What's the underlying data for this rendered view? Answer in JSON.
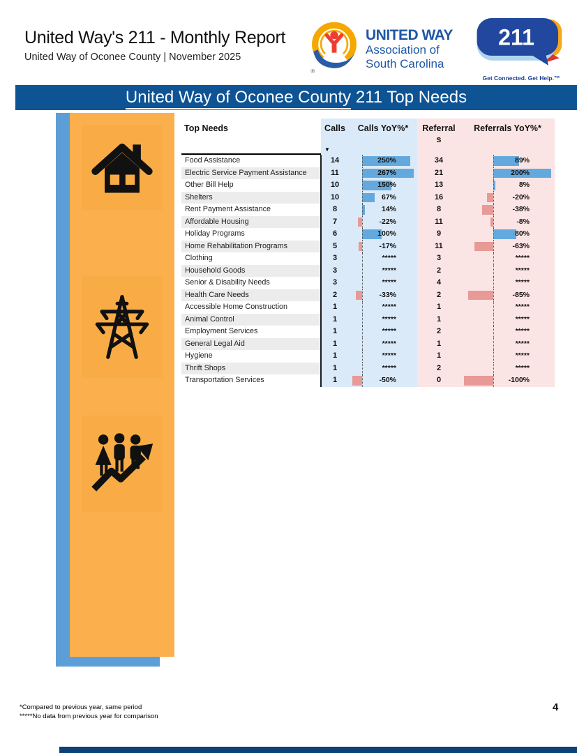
{
  "header": {
    "title": "United Way's 211 - Monthly Report",
    "subtitle": "United Way of Oconee County | November 2025"
  },
  "logos": {
    "united_way": {
      "brand": "UNITED WAY",
      "org_line1": "Association of",
      "org_line2": "South Carolina",
      "registered": "®"
    },
    "two_one_one": {
      "number": "211",
      "tagline": "Get Connected. Get Help.™"
    }
  },
  "banner": {
    "underlined": "United Way of Oconee County",
    "rest": " 211 Top Needs"
  },
  "sidebar": {
    "icons": [
      "house-icon",
      "transmission-tower-icon",
      "people-growth-icon"
    ]
  },
  "table": {
    "columns": [
      "Top Needs",
      "Calls",
      "Calls YoY%*",
      "Referrals",
      "Referrals YoY%*"
    ],
    "sort_indicator": "▼",
    "sorted_column": "Calls",
    "no_data_marker": "*****",
    "rows": [
      {
        "need": "Food Assistance",
        "calls": 14,
        "calls_yoy": 250,
        "calls_yoy_label": "250%",
        "referrals": 34,
        "referrals_yoy": 89,
        "referrals_yoy_label": "89%"
      },
      {
        "need": "Electric Service Payment Assistance",
        "calls": 11,
        "calls_yoy": 267,
        "calls_yoy_label": "267%",
        "referrals": 21,
        "referrals_yoy": 200,
        "referrals_yoy_label": "200%"
      },
      {
        "need": "Other Bill Help",
        "calls": 10,
        "calls_yoy": 150,
        "calls_yoy_label": "150%",
        "referrals": 13,
        "referrals_yoy": 8,
        "referrals_yoy_label": "8%"
      },
      {
        "need": "Shelters",
        "calls": 10,
        "calls_yoy": 67,
        "calls_yoy_label": "67%",
        "referrals": 16,
        "referrals_yoy": -20,
        "referrals_yoy_label": "-20%"
      },
      {
        "need": "Rent Payment Assistance",
        "calls": 8,
        "calls_yoy": 14,
        "calls_yoy_label": "14%",
        "referrals": 8,
        "referrals_yoy": -38,
        "referrals_yoy_label": "-38%"
      },
      {
        "need": "Affordable Housing",
        "calls": 7,
        "calls_yoy": -22,
        "calls_yoy_label": "-22%",
        "referrals": 11,
        "referrals_yoy": -8,
        "referrals_yoy_label": "-8%"
      },
      {
        "need": "Holiday Programs",
        "calls": 6,
        "calls_yoy": 100,
        "calls_yoy_label": "100%",
        "referrals": 9,
        "referrals_yoy": 80,
        "referrals_yoy_label": "80%"
      },
      {
        "need": "Home Rehabilitation Programs",
        "calls": 5,
        "calls_yoy": -17,
        "calls_yoy_label": "-17%",
        "referrals": 11,
        "referrals_yoy": -63,
        "referrals_yoy_label": "-63%"
      },
      {
        "need": "Clothing",
        "calls": 3,
        "calls_yoy": null,
        "calls_yoy_label": "*****",
        "referrals": 3,
        "referrals_yoy": null,
        "referrals_yoy_label": "*****"
      },
      {
        "need": "Household Goods",
        "calls": 3,
        "calls_yoy": null,
        "calls_yoy_label": "*****",
        "referrals": 2,
        "referrals_yoy": null,
        "referrals_yoy_label": "*****"
      },
      {
        "need": "Senior & Disability Needs",
        "calls": 3,
        "calls_yoy": null,
        "calls_yoy_label": "*****",
        "referrals": 4,
        "referrals_yoy": null,
        "referrals_yoy_label": "*****"
      },
      {
        "need": "Health Care Needs",
        "calls": 2,
        "calls_yoy": -33,
        "calls_yoy_label": "-33%",
        "referrals": 2,
        "referrals_yoy": -85,
        "referrals_yoy_label": "-85%"
      },
      {
        "need": "Accessible Home Construction",
        "calls": 1,
        "calls_yoy": null,
        "calls_yoy_label": "*****",
        "referrals": 1,
        "referrals_yoy": null,
        "referrals_yoy_label": "*****"
      },
      {
        "need": "Animal Control",
        "calls": 1,
        "calls_yoy": null,
        "calls_yoy_label": "*****",
        "referrals": 1,
        "referrals_yoy": null,
        "referrals_yoy_label": "*****"
      },
      {
        "need": "Employment Services",
        "calls": 1,
        "calls_yoy": null,
        "calls_yoy_label": "*****",
        "referrals": 2,
        "referrals_yoy": null,
        "referrals_yoy_label": "*****"
      },
      {
        "need": "General Legal Aid",
        "calls": 1,
        "calls_yoy": null,
        "calls_yoy_label": "*****",
        "referrals": 1,
        "referrals_yoy": null,
        "referrals_yoy_label": "*****"
      },
      {
        "need": "Hygiene",
        "calls": 1,
        "calls_yoy": null,
        "calls_yoy_label": "*****",
        "referrals": 1,
        "referrals_yoy": null,
        "referrals_yoy_label": "*****"
      },
      {
        "need": "Thrift Shops",
        "calls": 1,
        "calls_yoy": null,
        "calls_yoy_label": "*****",
        "referrals": 2,
        "referrals_yoy": null,
        "referrals_yoy_label": "*****"
      },
      {
        "need": "Transportation Services",
        "calls": 1,
        "calls_yoy": -50,
        "calls_yoy_label": "-50%",
        "referrals": 0,
        "referrals_yoy": -100,
        "referrals_yoy_label": "-100%"
      }
    ]
  },
  "footnotes": {
    "line1": "*Compared to previous year, same period",
    "line2": "*****No data from previous year for comparison"
  },
  "page_number": "4",
  "colors": {
    "banner_blue": "#0E5394",
    "sidebar_orange": "#FBB04D",
    "sidebar_blue": "#5B9FD6",
    "calls_column_bg": "#DBEAF9",
    "referrals_column_bg": "#FBE5E4",
    "positive_bar": "#64A9DD",
    "negative_bar": "#E79A96",
    "uw_blue": "#1F57A5",
    "uw_yellow": "#F5A800",
    "uw_red": "#EE3E33",
    "bubble_blue": "#21479E",
    "bottom_bar_blue": "#0D4178"
  },
  "chart_data": {
    "type": "table",
    "title": "United Way of Oconee County 211 Top Needs",
    "columns": [
      "Top Needs",
      "Calls",
      "Calls YoY%*",
      "Referrals",
      "Referrals YoY%*"
    ],
    "sorted_by": "Calls (descending)",
    "rows": [
      [
        "Food Assistance",
        14,
        "250%",
        34,
        "89%"
      ],
      [
        "Electric Service Payment Assistance",
        11,
        "267%",
        21,
        "200%"
      ],
      [
        "Other Bill Help",
        10,
        "150%",
        13,
        "8%"
      ],
      [
        "Shelters",
        10,
        "67%",
        16,
        "-20%"
      ],
      [
        "Rent Payment Assistance",
        8,
        "14%",
        8,
        "-38%"
      ],
      [
        "Affordable Housing",
        7,
        "-22%",
        11,
        "-8%"
      ],
      [
        "Holiday Programs",
        6,
        "100%",
        9,
        "80%"
      ],
      [
        "Home Rehabilitation Programs",
        5,
        "-17%",
        11,
        "-63%"
      ],
      [
        "Clothing",
        3,
        "*****",
        3,
        "*****"
      ],
      [
        "Household Goods",
        3,
        "*****",
        2,
        "*****"
      ],
      [
        "Senior & Disability Needs",
        3,
        "*****",
        4,
        "*****"
      ],
      [
        "Health Care Needs",
        2,
        "-33%",
        2,
        "-85%"
      ],
      [
        "Accessible Home Construction",
        1,
        "*****",
        1,
        "*****"
      ],
      [
        "Animal Control",
        1,
        "*****",
        1,
        "*****"
      ],
      [
        "Employment Services",
        1,
        "*****",
        2,
        "*****"
      ],
      [
        "General Legal Aid",
        1,
        "*****",
        1,
        "*****"
      ],
      [
        "Hygiene",
        1,
        "*****",
        1,
        "*****"
      ],
      [
        "Thrift Shops",
        1,
        "*****",
        2,
        "*****"
      ],
      [
        "Transportation Services",
        1,
        "-50%",
        0,
        "-100%"
      ]
    ],
    "notes": [
      "YoY% cells contain data bars: blue = positive, red = negative, dotted line = zero baseline",
      "***** = no data from previous year"
    ]
  }
}
